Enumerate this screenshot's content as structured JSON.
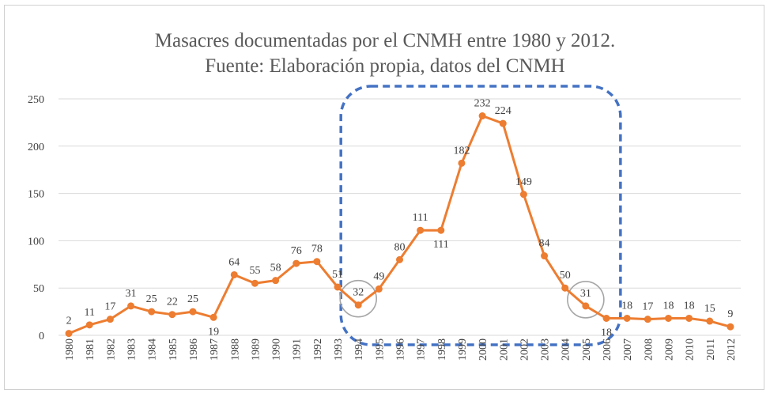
{
  "chart_data": {
    "type": "line",
    "title": "Masacres documentadas por el CNMH entre 1980 y 2012.",
    "subtitle": "Fuente: Elaboración propia, datos del CNMH",
    "xlabel": "",
    "ylabel": "",
    "ylim": [
      0,
      250
    ],
    "yticks": [
      "0",
      "50",
      "100",
      "150",
      "200",
      "250"
    ],
    "grid": true,
    "legend": "none",
    "categories": [
      "1980",
      "1981",
      "1982",
      "1983",
      "1984",
      "1985",
      "1986",
      "1987",
      "1988",
      "1989",
      "1990",
      "1991",
      "1992",
      "1993",
      "1994",
      "1995",
      "1996",
      "1997",
      "1998",
      "1999",
      "2000",
      "2001",
      "2002",
      "2003",
      "2004",
      "2005",
      "2006",
      "2007",
      "2008",
      "2009",
      "2010",
      "2011",
      "2012"
    ],
    "series": [
      {
        "values": [
          2,
          11,
          17,
          31,
          25,
          22,
          25,
          19,
          64,
          55,
          58,
          76,
          78,
          51,
          32,
          49,
          80,
          111,
          111,
          182,
          232,
          224,
          149,
          84,
          50,
          31,
          18,
          18,
          17,
          18,
          18,
          15,
          9
        ],
        "color": "#ED7D31"
      }
    ],
    "data_labels": [
      "2",
      "11",
      "17",
      "31",
      "25",
      "22",
      "25",
      "19",
      "64",
      "55",
      "58",
      "76",
      "78",
      "51",
      "32",
      "49",
      "80",
      "111",
      "111",
      "182",
      "232",
      "224",
      "149",
      "84",
      "50",
      "31",
      "18",
      "18",
      "17",
      "18",
      "18",
      "15",
      "9"
    ],
    "annotations": [
      {
        "type": "dashed-rounded-box",
        "from": "1994",
        "to": "2005",
        "color": "#4472C4"
      },
      {
        "type": "circle",
        "at": "1994",
        "color": "#A6A6A6"
      },
      {
        "type": "circle",
        "at": "2005",
        "color": "#A6A6A6"
      }
    ]
  }
}
